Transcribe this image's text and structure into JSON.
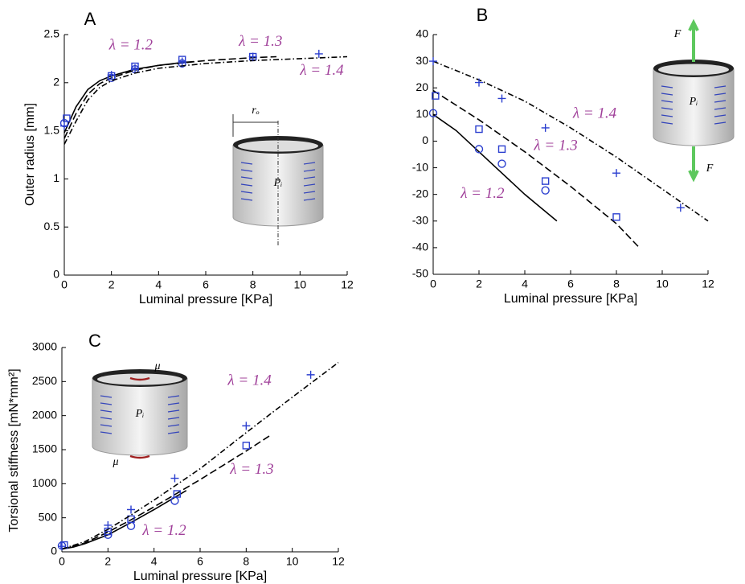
{
  "chart_data": [
    {
      "type": "line",
      "panel": "A",
      "xlabel": "Luminal pressure [KPa]",
      "ylabel": "Outer radius [mm]",
      "xlim": [
        0,
        12
      ],
      "ylim": [
        0,
        2.5
      ],
      "xticks": [
        0,
        2,
        4,
        6,
        8,
        10,
        12
      ],
      "yticks": [
        0,
        0.5,
        1,
        1.5,
        2,
        2.5
      ],
      "icon_labels": [
        "rₒ",
        "Pᵢ"
      ],
      "series": [
        {
          "name": "λ = 1.2",
          "color": "#000000",
          "dash": "solid",
          "x": [
            0,
            0.5,
            1,
            1.5,
            2,
            3,
            4,
            5,
            5.5
          ],
          "values": [
            1.48,
            1.75,
            1.93,
            2.02,
            2.07,
            2.14,
            2.18,
            2.21,
            2.22
          ],
          "points": {
            "marker": "circle",
            "color": "#2b3fcf",
            "x": [
              0,
              2,
              3,
              5
            ],
            "values": [
              1.58,
              2.05,
              2.14,
              2.2
            ]
          }
        },
        {
          "name": "λ = 1.3",
          "color": "#000000",
          "dash": "dashed",
          "x": [
            0,
            0.5,
            1,
            1.5,
            2,
            3,
            4,
            6,
            8,
            9
          ],
          "values": [
            1.42,
            1.68,
            1.88,
            1.99,
            2.05,
            2.13,
            2.18,
            2.23,
            2.26,
            2.27
          ],
          "points": {
            "marker": "square",
            "color": "#2b3fcf",
            "x": [
              0.1,
              2,
              3,
              5,
              8
            ],
            "values": [
              1.63,
              2.07,
              2.17,
              2.24,
              2.27
            ]
          }
        },
        {
          "name": "λ = 1.4",
          "color": "#000000",
          "dash": "dashdot",
          "x": [
            0,
            0.5,
            1,
            1.5,
            2,
            3,
            4,
            6,
            8,
            10,
            12
          ],
          "values": [
            1.36,
            1.6,
            1.82,
            1.95,
            2.02,
            2.1,
            2.15,
            2.2,
            2.23,
            2.25,
            2.27
          ],
          "points": {
            "marker": "plus",
            "color": "#2b3fcf",
            "x": [
              0,
              2,
              3,
              5,
              8,
              10.8
            ],
            "values": [
              1.55,
              2.08,
              2.15,
              2.22,
              2.27,
              2.3
            ]
          }
        }
      ]
    },
    {
      "type": "line",
      "panel": "B",
      "xlabel": "Luminal pressure [KPa]",
      "xlim": [
        0,
        12
      ],
      "ylim": [
        -50,
        40
      ],
      "xticks": [
        0,
        2,
        4,
        6,
        8,
        10,
        12
      ],
      "yticks": [
        -50,
        -40,
        -30,
        -20,
        -10,
        0,
        10,
        20,
        30,
        40
      ],
      "icon_labels": [
        "Pᵢ",
        "F",
        "F"
      ],
      "series": [
        {
          "name": "λ = 1.2",
          "color": "#000000",
          "dash": "solid",
          "x": [
            0,
            1,
            2,
            3,
            4,
            5.4
          ],
          "values": [
            10,
            4,
            -4,
            -12,
            -20,
            -30
          ],
          "points": {
            "marker": "circle",
            "color": "#2b3fcf",
            "x": [
              0,
              2,
              3,
              4.9
            ],
            "values": [
              10.5,
              -3,
              -8.5,
              -18.5
            ]
          }
        },
        {
          "name": "λ = 1.3",
          "color": "#000000",
          "dash": "dashed",
          "x": [
            0,
            2,
            4,
            6,
            8,
            9
          ],
          "values": [
            19,
            8,
            -4,
            -17,
            -31,
            -40
          ],
          "points": {
            "marker": "square",
            "color": "#2b3fcf",
            "x": [
              0.1,
              2,
              3,
              4.9,
              8
            ],
            "values": [
              17,
              4.5,
              -3,
              -15,
              -28.5
            ]
          }
        },
        {
          "name": "λ = 1.4",
          "color": "#000000",
          "dash": "dashdot",
          "x": [
            0,
            2,
            4,
            6,
            8,
            10,
            12
          ],
          "values": [
            30,
            23,
            15,
            5,
            -6,
            -18,
            -30
          ],
          "points": {
            "marker": "plus",
            "color": "#2b3fcf",
            "x": [
              0,
              2,
              3,
              4.9,
              8,
              10.8
            ],
            "values": [
              30,
              22,
              16,
              5,
              -12,
              -25
            ]
          }
        }
      ]
    },
    {
      "type": "line",
      "panel": "C",
      "xlabel": "Luminal pressure [KPa]",
      "ylabel": "Torsional stiffness [mN*mm²]",
      "xlim": [
        0,
        12
      ],
      "ylim": [
        0,
        3000
      ],
      "xticks": [
        0,
        2,
        4,
        6,
        8,
        10,
        12
      ],
      "yticks": [
        0,
        500,
        1000,
        1500,
        2000,
        2500,
        3000
      ],
      "icon_labels": [
        "μ",
        "Pᵢ",
        "μ"
      ],
      "series": [
        {
          "name": "λ = 1.2",
          "color": "#000000",
          "dash": "solid",
          "x": [
            0,
            0.5,
            1,
            2,
            3,
            4,
            5.4
          ],
          "values": [
            40,
            70,
            120,
            250,
            430,
            620,
            900
          ],
          "points": {
            "marker": "circle",
            "color": "#2b3fcf",
            "x": [
              0,
              2,
              3,
              4.9
            ],
            "values": [
              90,
              250,
              380,
              750
            ]
          }
        },
        {
          "name": "λ = 1.3",
          "color": "#000000",
          "dash": "dashed",
          "x": [
            0,
            1,
            2,
            3,
            4,
            6,
            8,
            9
          ],
          "values": [
            40,
            130,
            290,
            470,
            660,
            1060,
            1480,
            1700
          ],
          "points": {
            "marker": "square",
            "color": "#2b3fcf",
            "x": [
              0.1,
              2,
              3,
              5,
              8
            ],
            "values": [
              100,
              300,
              480,
              850,
              1560
            ]
          }
        },
        {
          "name": "λ = 1.4",
          "color": "#000000",
          "dash": "dashdot",
          "x": [
            0,
            1,
            2,
            3,
            4,
            6,
            8,
            10,
            12
          ],
          "values": [
            40,
            150,
            330,
            540,
            760,
            1220,
            1750,
            2270,
            2780
          ],
          "points": {
            "marker": "plus",
            "color": "#2b3fcf",
            "x": [
              0,
              2,
              3,
              4.9,
              8,
              10.8
            ],
            "values": [
              80,
              390,
              620,
              1080,
              1850,
              2600
            ]
          }
        }
      ]
    }
  ]
}
